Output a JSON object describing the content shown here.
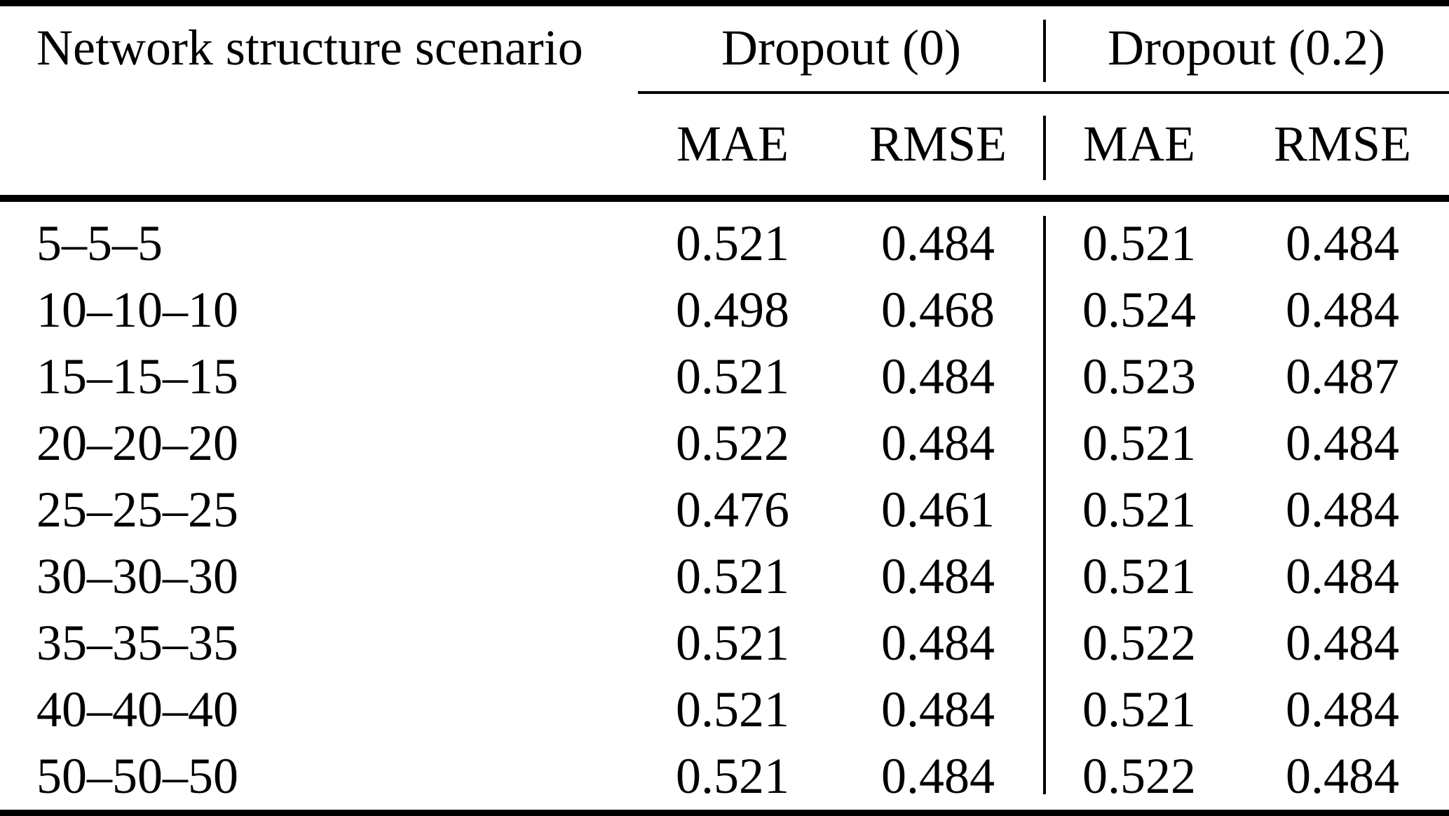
{
  "table": {
    "columns": {
      "scenario": "Network structure scenario",
      "group1": "Dropout (0)",
      "group2": "Dropout (0.2)",
      "mae": "MAE",
      "rmse": "RMSE"
    },
    "rows": [
      {
        "scenario": "5–5–5",
        "d0_mae": "0.521",
        "d0_rmse": "0.484",
        "d2_mae": "0.521",
        "d2_rmse": "0.484"
      },
      {
        "scenario": "10–10–10",
        "d0_mae": "0.498",
        "d0_rmse": "0.468",
        "d2_mae": "0.524",
        "d2_rmse": "0.484"
      },
      {
        "scenario": "15–15–15",
        "d0_mae": "0.521",
        "d0_rmse": "0.484",
        "d2_mae": "0.523",
        "d2_rmse": "0.487"
      },
      {
        "scenario": "20–20–20",
        "d0_mae": "0.522",
        "d0_rmse": "0.484",
        "d2_mae": "0.521",
        "d2_rmse": "0.484"
      },
      {
        "scenario": "25–25–25",
        "d0_mae": "0.476",
        "d0_rmse": "0.461",
        "d2_mae": "0.521",
        "d2_rmse": "0.484"
      },
      {
        "scenario": "30–30–30",
        "d0_mae": "0.521",
        "d0_rmse": "0.484",
        "d2_mae": "0.521",
        "d2_rmse": "0.484"
      },
      {
        "scenario": "35–35–35",
        "d0_mae": "0.521",
        "d0_rmse": "0.484",
        "d2_mae": "0.522",
        "d2_rmse": "0.484"
      },
      {
        "scenario": "40–40–40",
        "d0_mae": "0.521",
        "d0_rmse": "0.484",
        "d2_mae": "0.521",
        "d2_rmse": "0.484"
      },
      {
        "scenario": "50–50–50",
        "d0_mae": "0.521",
        "d0_rmse": "0.484",
        "d2_mae": "0.522",
        "d2_rmse": "0.484"
      }
    ]
  },
  "colors": {
    "text": "#000000",
    "background": "#ffffff",
    "rule": "#000000"
  }
}
